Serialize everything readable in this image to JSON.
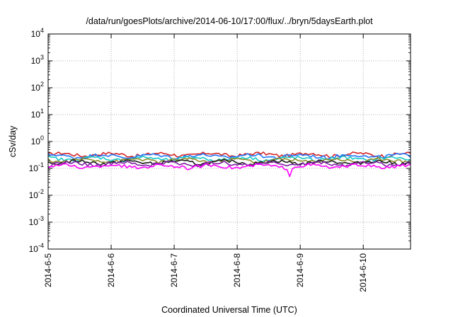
{
  "chart_data": {
    "type": "line",
    "title": "/data/run/goesPlots/archive/2014-06-10/17:00/flux/../bryn/5daysEarth.plot",
    "xlabel": "Coordinated Universal Time (UTC)",
    "ylabel": "cSv/day",
    "yscale": "log",
    "ylim": [
      0.0001,
      10000
    ],
    "xlim": [
      "2014-06-05T00:00",
      "2014-06-10T18:00"
    ],
    "grid": true,
    "legend": "none",
    "x_ticks": [
      "2014-6-5",
      "2014-6-6",
      "2014-6-7",
      "2014-6-8",
      "2014-6-9",
      "2014-6-10"
    ],
    "y_ticks": [
      {
        "base": "10",
        "exp": "-4"
      },
      {
        "base": "10",
        "exp": "-3"
      },
      {
        "base": "10",
        "exp": "-2"
      },
      {
        "base": "10",
        "exp": "-1"
      },
      {
        "base": "10",
        "exp": "0"
      },
      {
        "base": "10",
        "exp": "1"
      },
      {
        "base": "10",
        "exp": "2"
      },
      {
        "base": "10",
        "exp": "3"
      },
      {
        "base": "10",
        "exp": "4"
      }
    ],
    "series_sampling": "hourly, 2014-06-05T00:00 to 2014-06-10T18:00",
    "series": [
      {
        "color": "#d62728",
        "base": 0.33,
        "spike": null
      },
      {
        "color": "#1f77ff",
        "base": 0.29,
        "spike": null
      },
      {
        "color": "#17c8c8",
        "base": 0.23,
        "spike": null
      },
      {
        "color": "#8c8c2a",
        "base": 0.2,
        "spike": null
      },
      {
        "color": "#1a1a1a",
        "base": 0.17,
        "spike": null
      },
      {
        "color": "#7b1fa2",
        "base": 0.15,
        "spike": null
      },
      {
        "color": "#ff00ff",
        "base": 0.12,
        "spike": {
          "time": "2014-06-08T20:00",
          "value": 0.05
        }
      }
    ]
  }
}
